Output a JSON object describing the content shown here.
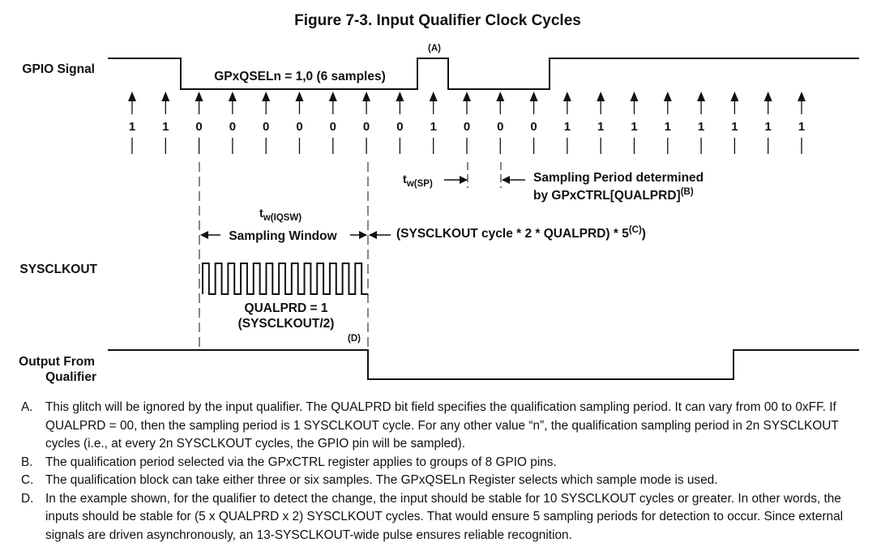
{
  "figure": {
    "title": "Figure 7-3. Input Qualifier Clock Cycles",
    "signals": {
      "gpio": "GPIO Signal",
      "sysclkout": "SYSCLKOUT",
      "output_line1": "Output From",
      "output_line2": "Qualifier"
    },
    "labels": {
      "qsel": "GPxQSELn = 1,0 (6 samples)",
      "glitch_marker": "(A)",
      "output_marker": "(D)",
      "tw_sp": "t",
      "tw_sp_sub": "w(SP)",
      "sampling_period_line1": "Sampling Period determined",
      "sampling_period_line2": "by GPxCTRL[QUALPRD]",
      "sampling_period_sup": "(B)",
      "tw_iqsw": "t",
      "tw_iqsw_sub": "w(IQSW)",
      "sampling_window": "Sampling Window",
      "formula": "(SYSCLKOUT cycle  * 2 * QUALPRD) * 5",
      "formula_sup": "(C)",
      "formula_close": ")",
      "qualprd": "QUALPRD = 1",
      "qualprd_sub": "(SYSCLKOUT/2)"
    },
    "samples": [
      "1",
      "1",
      "0",
      "0",
      "0",
      "0",
      "0",
      "0",
      "0",
      "1",
      "0",
      "0",
      "0",
      "1",
      "1",
      "1",
      "1",
      "1",
      "1",
      "1",
      "1"
    ]
  },
  "notes": [
    {
      "letter": "A.",
      "text": "This glitch will be ignored by the input qualifier. The QUALPRD bit field specifies the qualification sampling period. It can vary from 00 to 0xFF. If QUALPRD = 00, then the sampling period is 1 SYSCLKOUT cycle. For any other value “n”, the qualification sampling period in 2n SYSCLKOUT cycles (i.e., at every 2n SYSCLKOUT cycles, the GPIO pin will be sampled)."
    },
    {
      "letter": "B.",
      "text": "The qualification period selected via the GPxCTRL register applies to groups of 8 GPIO pins."
    },
    {
      "letter": "C.",
      "text": "The qualification block can take either three or six samples. The GPxQSELn Register selects which sample mode is used."
    },
    {
      "letter": "D.",
      "text": "In the example shown, for the qualifier to detect the change, the input should be stable for 10 SYSCLKOUT cycles or greater. In other words, the inputs should be stable for (5 x QUALPRD x 2) SYSCLKOUT cycles. That would ensure 5 sampling periods for detection to occur. Since external signals are driven asynchronously, an 13-SYSCLKOUT-wide pulse ensures reliable recognition."
    }
  ]
}
